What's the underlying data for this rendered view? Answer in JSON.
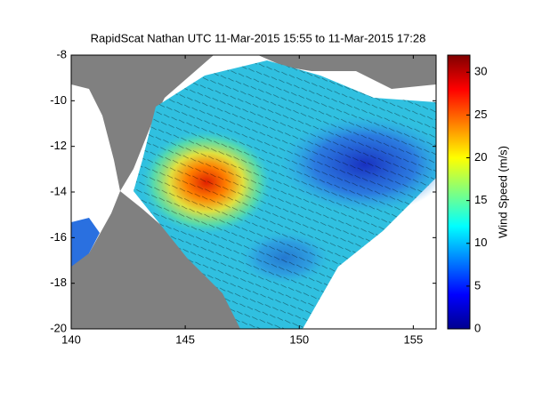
{
  "chart_data": {
    "type": "heatmap",
    "title": "RapidScat Nathan UTC 11-Mar-2015 15:55 to 11-Mar-2015 17:28",
    "xlim": [
      140,
      156
    ],
    "xticks": [
      140,
      145,
      150,
      155
    ],
    "ylim": [
      -20,
      -8
    ],
    "yticks": [
      -20,
      -18,
      -16,
      -14,
      -12,
      -10,
      -8
    ],
    "colorbar": {
      "label": "Wind Speed (m/s)",
      "lim": [
        0,
        32
      ],
      "ticks": [
        0,
        5,
        10,
        15,
        20,
        25,
        30
      ]
    }
  }
}
